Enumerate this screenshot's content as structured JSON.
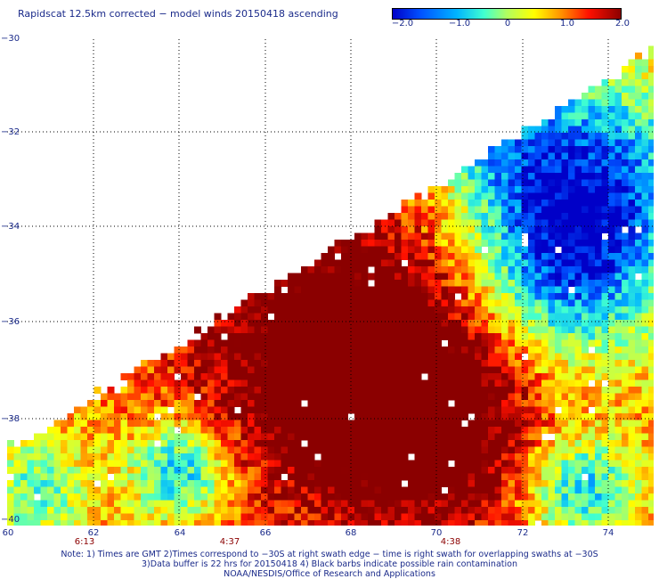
{
  "title": "Rapidscat 12.5km corrected − model winds 20150418 ascending",
  "colorbar": {
    "labels": [
      "−2.0",
      "−1.0",
      "0",
      "1.0",
      "2.0"
    ],
    "min": -2.0,
    "max": 2.0
  },
  "lat_labels": [
    "−30",
    "−32",
    "−34",
    "−36",
    "−38",
    "−40"
  ],
  "lon_labels": [
    "60",
    "62",
    "64",
    "66",
    "68",
    "70",
    "72",
    "74"
  ],
  "time_labels": [
    "6:13",
    "4:37",
    "4:38"
  ],
  "notes": {
    "line1": "Note: 1) Times are GMT 2)Times correspond to −30S at right swath edge − time is right swath for overlapping swaths at −30S",
    "line2": "3)Data buffer is 22 hrs for 20150418 4) Black barbs indicate possible rain contamination",
    "line3": "NOAA/NESDIS/Office of Research and Applications"
  },
  "colors": {
    "dark_red": "#8b0000",
    "label_blue": "#1a2a8a"
  },
  "map_extent": {
    "lon": [
      60,
      75
    ],
    "lat": [
      -40,
      -30
    ]
  }
}
